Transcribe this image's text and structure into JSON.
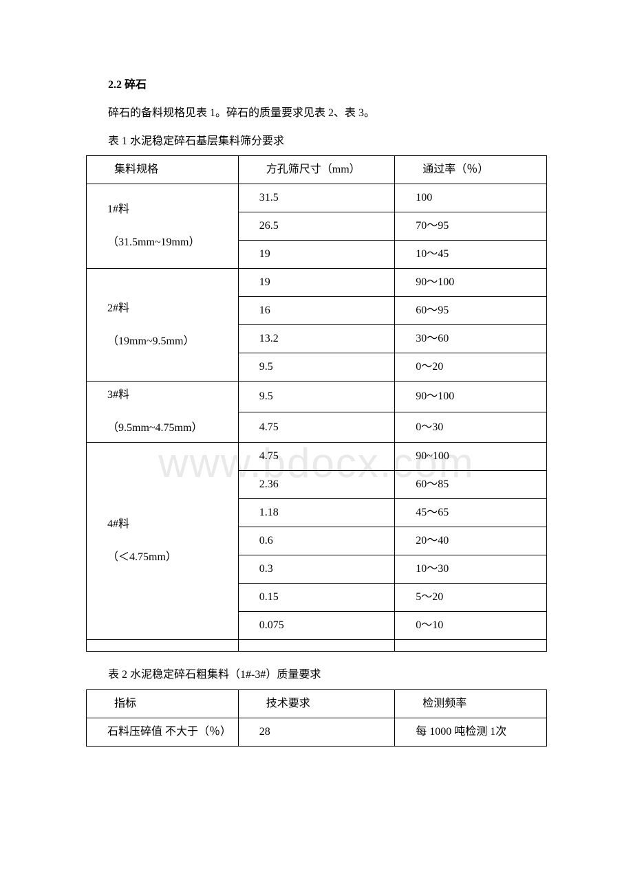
{
  "watermark": "www.bdocx.com",
  "section_title": "2.2 碎石",
  "intro_text": "碎石的备料规格见表 1。碎石的质量要求见表 2、表 3。",
  "table1": {
    "caption": "表 1 水泥稳定碎石基层集料筛分要求",
    "headers": [
      "集料规格",
      "方孔筛尺寸（mm）",
      "通过率（％）"
    ],
    "groups": [
      {
        "label": "1#料",
        "sublabel": "（31.5mm~19mm）",
        "rows": [
          [
            "31.5",
            "100"
          ],
          [
            "26.5",
            "70～95"
          ],
          [
            "19",
            "10～45"
          ]
        ]
      },
      {
        "label": "2#料",
        "sublabel": "（19mm~9.5mm）",
        "rows": [
          [
            "19",
            "90～100"
          ],
          [
            "16",
            "60～95"
          ],
          [
            "13.2",
            "30～60"
          ],
          [
            "9.5",
            "0～20"
          ]
        ]
      },
      {
        "label": "3#料",
        "sublabel": "（9.5mm~4.75mm）",
        "rows": [
          [
            "9.5",
            "90～100"
          ],
          [
            "4.75",
            "0～30"
          ]
        ]
      },
      {
        "label": "4#料",
        "sublabel": "（＜4.75mm）",
        "rows": [
          [
            "4.75",
            "90~100"
          ],
          [
            "2.36",
            "60～85"
          ],
          [
            "1.18",
            "45～65"
          ],
          [
            "0.6",
            "20～40"
          ],
          [
            "0.3",
            "10～30"
          ],
          [
            "0.15",
            "5～20"
          ],
          [
            "0.075",
            "0～10"
          ]
        ]
      }
    ],
    "empty_row": [
      "",
      "",
      ""
    ]
  },
  "table2": {
    "caption": "表 2 水泥稳定碎石粗集料（1#-3#）质量要求",
    "headers": [
      "指标",
      "技术要求",
      "检测频率"
    ],
    "rows": [
      [
        "石料压碎值 不大于（％）",
        "28",
        "每 1000 吨检测 1次"
      ]
    ]
  }
}
